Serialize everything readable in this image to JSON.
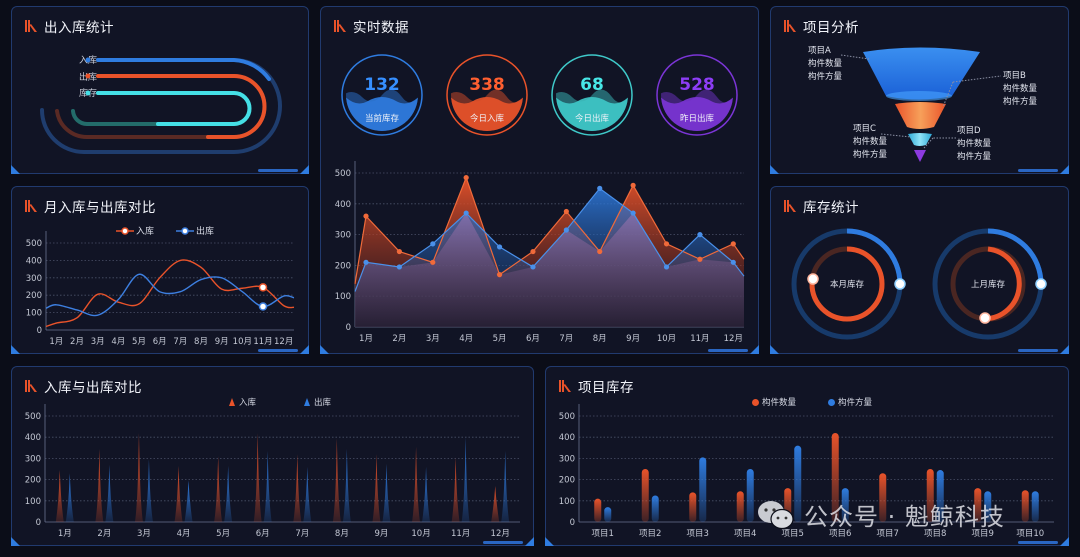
{
  "panels": {
    "inout_stats": {
      "title": "出入库统计",
      "legend": [
        "入库",
        "出库",
        "库存"
      ],
      "colors": [
        "#2f7ce0",
        "#e9532a",
        "#45dfe6"
      ]
    },
    "monthly_compare": {
      "title": "月入库与出库对比",
      "legend": [
        "入库",
        "出库"
      ]
    },
    "realtime": {
      "title": "实时数据",
      "gauges": [
        {
          "value": "132",
          "label": "当前库存",
          "color": "#2f7ce0"
        },
        {
          "value": "338",
          "label": "今日入库",
          "color": "#e9532a"
        },
        {
          "value": "68",
          "label": "今日出库",
          "color": "#3fc9c9"
        },
        {
          "value": "528",
          "label": "昨日出库",
          "color": "#7b35d6"
        }
      ]
    },
    "project_analysis": {
      "title": "项目分析",
      "items": [
        {
          "name": "项目A",
          "l1": "构件数量",
          "l2": "构件方量"
        },
        {
          "name": "项目B",
          "l1": "构件数量",
          "l2": "构件方量"
        },
        {
          "name": "项目C",
          "l1": "构件数量",
          "l2": "构件方量"
        },
        {
          "name": "项目D",
          "l1": "构件数量",
          "l2": "构件方量"
        }
      ]
    },
    "stock_stats": {
      "title": "库存统计",
      "rings": [
        {
          "label": "本月库存"
        },
        {
          "label": "上月库存"
        }
      ]
    },
    "inout_compare": {
      "title": "入库与出库对比",
      "legend": [
        "入库",
        "出库"
      ]
    },
    "project_stock": {
      "title": "项目库存",
      "legend": [
        "构件数量",
        "构件方量"
      ]
    }
  },
  "watermark": "公众号 · 魁鲸科技",
  "months": [
    "1月",
    "2月",
    "3月",
    "4月",
    "5月",
    "6月",
    "7月",
    "8月",
    "9月",
    "10月",
    "11月",
    "12月"
  ],
  "chart_data": [
    {
      "id": "monthly_compare",
      "type": "line",
      "title": "月入库与出库对比",
      "categories": [
        "1月",
        "2月",
        "3月",
        "4月",
        "5月",
        "6月",
        "7月",
        "8月",
        "9月",
        "10月",
        "11月",
        "12月"
      ],
      "yticks": [
        0,
        100,
        200,
        300,
        400,
        500
      ],
      "ylim": [
        0,
        500
      ],
      "series": [
        {
          "name": "入库",
          "color": "#e9532a",
          "values": [
            40,
            70,
            205,
            160,
            150,
            300,
            400,
            360,
            235,
            240,
            245,
            140
          ]
        },
        {
          "name": "出库",
          "color": "#3d7fe0",
          "values": [
            145,
            115,
            85,
            175,
            320,
            220,
            220,
            290,
            300,
            220,
            135,
            195
          ]
        }
      ],
      "legend_position": "top",
      "grid": true
    },
    {
      "id": "realtime_area",
      "type": "area",
      "title": "实时数据",
      "categories": [
        "1月",
        "2月",
        "3月",
        "4月",
        "5月",
        "6月",
        "7月",
        "8月",
        "9月",
        "10月",
        "11月",
        "12月"
      ],
      "yticks": [
        0,
        100,
        200,
        300,
        400,
        500
      ],
      "ylim": [
        0,
        500
      ],
      "series": [
        {
          "name": "入库",
          "color": "#e9532a",
          "values": [
            360,
            245,
            210,
            485,
            170,
            245,
            375,
            245,
            460,
            270,
            220,
            270
          ]
        },
        {
          "name": "出库",
          "color": "#2f7ce0",
          "values": [
            210,
            195,
            270,
            370,
            260,
            195,
            315,
            450,
            370,
            195,
            300,
            210
          ]
        }
      ],
      "grid": true
    },
    {
      "id": "inout_compare",
      "type": "bar",
      "title": "入库与出库对比",
      "categories": [
        "1月",
        "2月",
        "3月",
        "4月",
        "5月",
        "6月",
        "7月",
        "8月",
        "9月",
        "10月",
        "11月",
        "12月"
      ],
      "yticks": [
        0,
        100,
        200,
        300,
        400,
        500
      ],
      "ylim": [
        0,
        500
      ],
      "series": [
        {
          "name": "入库",
          "color": "#e9532a",
          "values": [
            245,
            345,
            420,
            265,
            310,
            420,
            320,
            395,
            320,
            355,
            305,
            170
          ]
        },
        {
          "name": "出库",
          "color": "#2f7ce0",
          "values": [
            230,
            270,
            295,
            195,
            265,
            335,
            260,
            345,
            275,
            260,
            400,
            335
          ]
        }
      ],
      "legend_position": "top",
      "grid": true
    },
    {
      "id": "project_stock",
      "type": "bar",
      "title": "项目库存",
      "categories": [
        "项目1",
        "项目2",
        "项目3",
        "项目4",
        "项目5",
        "项目6",
        "项目7",
        "项目8",
        "项目9",
        "项目10"
      ],
      "yticks": [
        0,
        100,
        200,
        300,
        400,
        500
      ],
      "ylim": [
        0,
        500
      ],
      "series": [
        {
          "name": "构件数量",
          "color": "#e9532a",
          "values": [
            110,
            250,
            140,
            145,
            160,
            420,
            230,
            250,
            160,
            150
          ]
        },
        {
          "name": "构件方量",
          "color": "#2f7ce0",
          "values": [
            70,
            125,
            305,
            250,
            360,
            160,
            0,
            245,
            145,
            145
          ]
        }
      ],
      "legend_position": "top",
      "grid": true
    },
    {
      "id": "stock_rings",
      "type": "pie",
      "title": "库存统计",
      "series": [
        {
          "name": "本月库存",
          "outer_pct": 25,
          "inner_pct": 75
        },
        {
          "name": "上月库存",
          "outer_pct": 25,
          "inner_pct": 60
        }
      ]
    },
    {
      "id": "project_funnel",
      "type": "funnel",
      "title": "项目分析",
      "categories": [
        "项目A",
        "项目B",
        "项目C",
        "项目D"
      ],
      "colors": [
        "#2f7ce0",
        "#f07a2e",
        "#3cc5e8",
        "#8c3ae0"
      ]
    }
  ]
}
